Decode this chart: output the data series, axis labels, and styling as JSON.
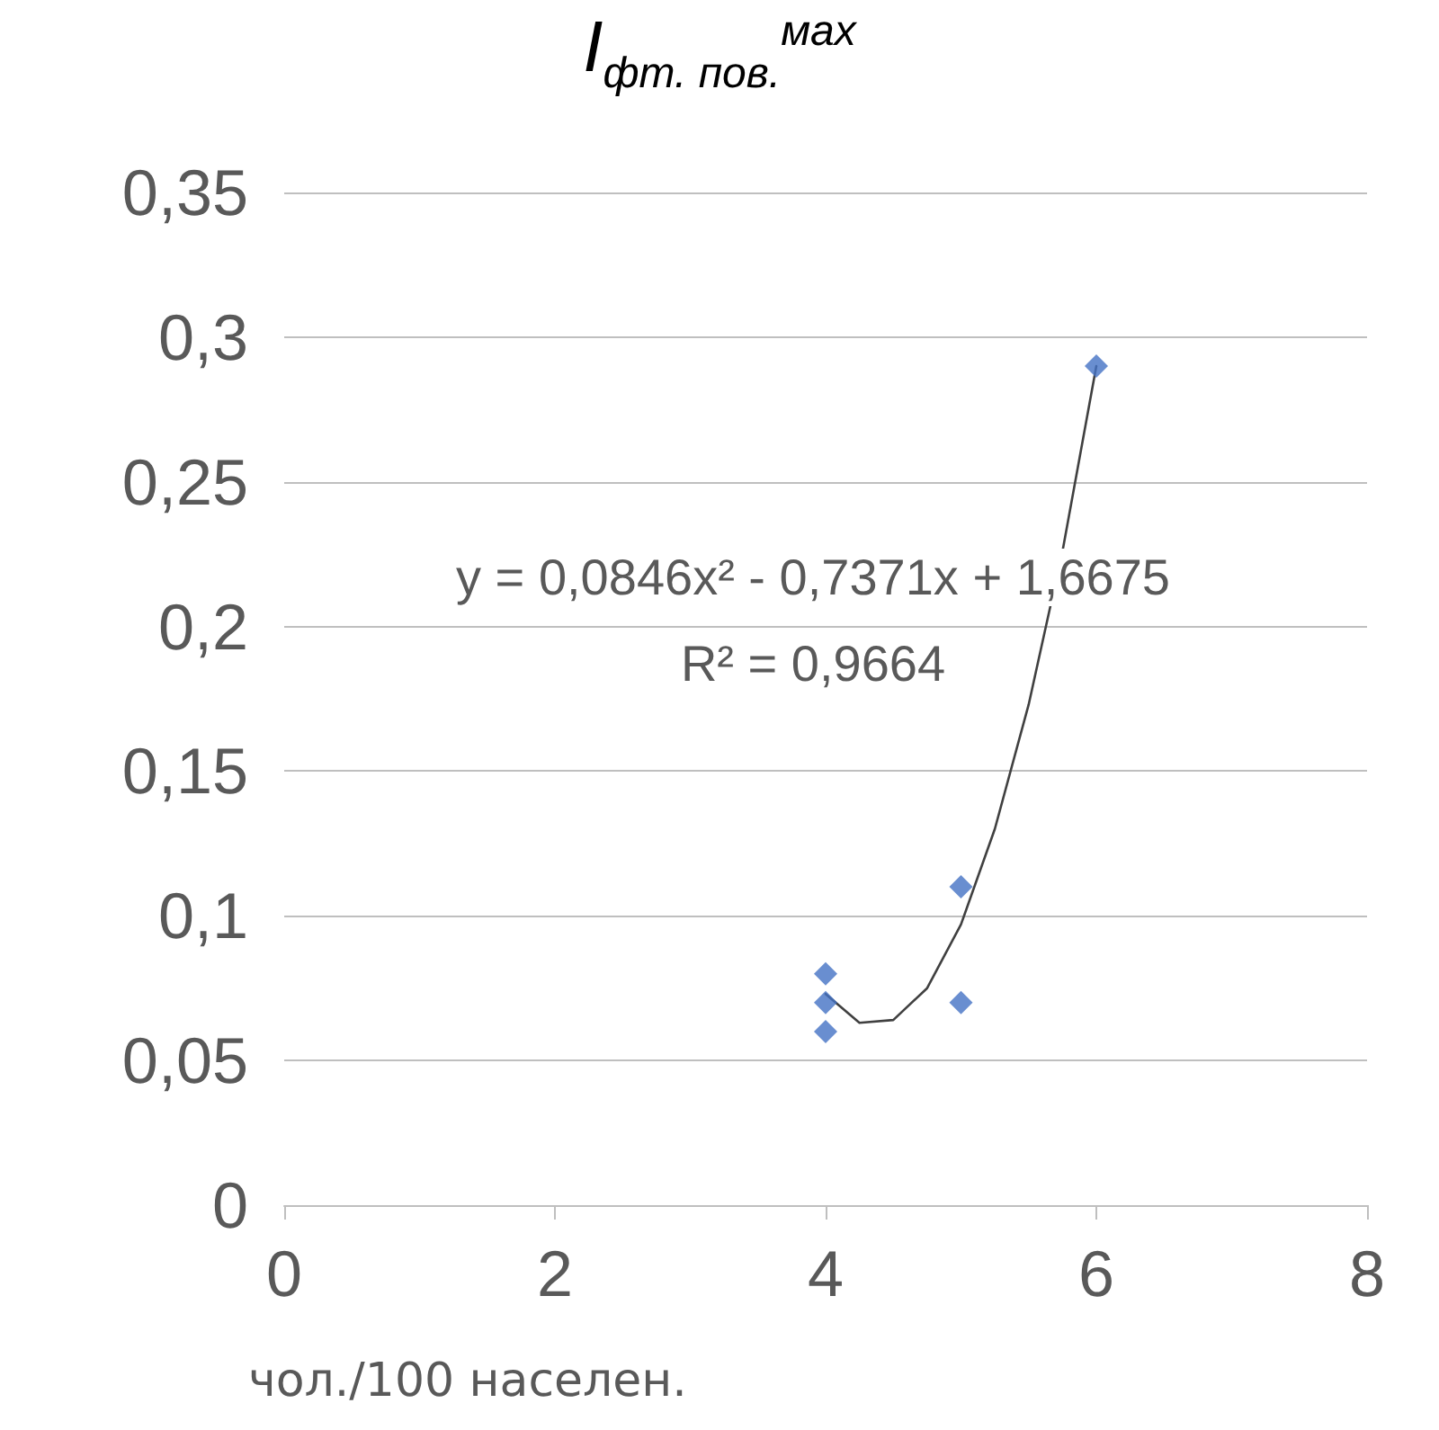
{
  "chart_data": {
    "type": "scatter",
    "title": "I$_{фт. пов.}$$^{мах}$",
    "xlabel": "чол./100 населен.",
    "annotations": [
      "y = 0,0846x² - 0,7371x + 1,6675",
      "R² = 0,9664"
    ],
    "series": [
      {
        "color": "#4472c4",
        "marker": "diamond",
        "x": [
          4,
          4,
          4,
          5,
          5,
          6
        ],
        "values": [
          0.08,
          0.07,
          0.06,
          0.11,
          0.07,
          0.29
        ]
      },
      {
        "type": "line",
        "color": "#404040",
        "marker": "none",
        "x": [
          4,
          4.25,
          4.5,
          4.75,
          5,
          5.25,
          5.5,
          5.75,
          6
        ],
        "values": [
          0.073,
          0.063,
          0.064,
          0.075,
          0.097,
          0.13,
          0.173,
          0.226,
          0.29
        ]
      }
    ],
    "xlim": [
      0,
      8
    ],
    "xticks": [
      0,
      2,
      4,
      6,
      8
    ],
    "ylim": [
      0,
      0.35
    ],
    "yticks": [
      {
        "value": 0,
        "label": "0"
      },
      {
        "value": 0.05,
        "label": "0,05"
      },
      {
        "value": 0.1,
        "label": "0,1"
      },
      {
        "value": 0.15,
        "label": "0,15"
      },
      {
        "value": 0.2,
        "label": "0,2"
      },
      {
        "value": 0.25,
        "label": "0,25"
      },
      {
        "value": 0.3,
        "label": "0,3"
      },
      {
        "value": 0.35,
        "label": "0,35"
      }
    ],
    "grid": "y"
  }
}
